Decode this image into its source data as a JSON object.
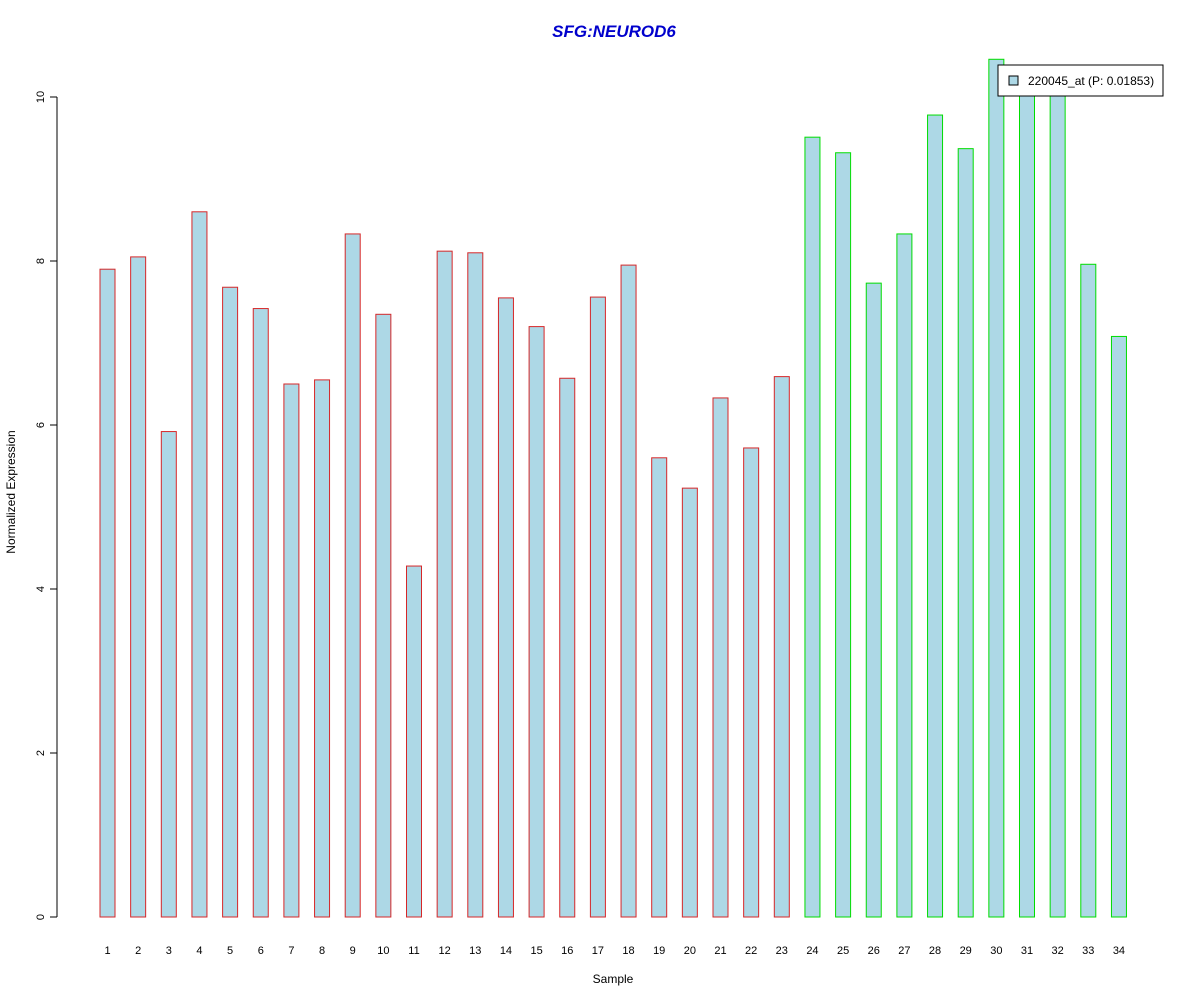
{
  "chart_data": {
    "type": "bar",
    "title": "SFG:NEUROD6",
    "xlabel": "Sample",
    "ylabel": "Normalized Expression",
    "ylim": [
      0,
      10.5
    ],
    "yticks": [
      0,
      2,
      4,
      6,
      8,
      10
    ],
    "grid": false,
    "legend_position": "top-right",
    "categories": [
      "1",
      "2",
      "3",
      "4",
      "5",
      "6",
      "7",
      "8",
      "9",
      "10",
      "11",
      "12",
      "13",
      "14",
      "15",
      "16",
      "17",
      "18",
      "19",
      "20",
      "21",
      "22",
      "23",
      "24",
      "25",
      "26",
      "27",
      "28",
      "29",
      "30",
      "31",
      "32",
      "33",
      "34"
    ],
    "series": [
      {
        "name": "220045_at (P: 0.01853)",
        "values": [
          7.9,
          8.05,
          5.92,
          8.6,
          7.68,
          7.42,
          6.5,
          6.55,
          8.33,
          7.35,
          4.28,
          8.12,
          8.1,
          7.55,
          7.2,
          6.57,
          7.56,
          7.95,
          5.6,
          5.23,
          6.33,
          5.72,
          6.59,
          9.51,
          9.32,
          7.73,
          8.33,
          9.78,
          9.37,
          10.46,
          10.1,
          10.1,
          7.96,
          7.08
        ],
        "fill": "#add8e6"
      }
    ],
    "border_colors": [
      "#d62728",
      "#d62728",
      "#d62728",
      "#d62728",
      "#d62728",
      "#d62728",
      "#d62728",
      "#d62728",
      "#d62728",
      "#d62728",
      "#d62728",
      "#d62728",
      "#d62728",
      "#d62728",
      "#d62728",
      "#d62728",
      "#d62728",
      "#d62728",
      "#d62728",
      "#d62728",
      "#d62728",
      "#d62728",
      "#d62728",
      "#00dd00",
      "#00dd00",
      "#00dd00",
      "#00dd00",
      "#00dd00",
      "#00dd00",
      "#00dd00",
      "#00dd00",
      "#00dd00",
      "#00dd00",
      "#00dd00"
    ]
  },
  "colors": {
    "title": "#0000cc",
    "axis": "#000000",
    "legend_swatch": "#add8e6"
  }
}
